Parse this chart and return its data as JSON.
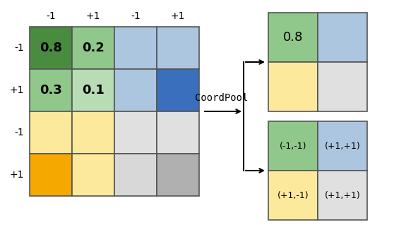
{
  "left_grid_colors": [
    [
      "#4a8c3f",
      "#90c78a",
      "#adc6e0",
      "#adc6e0"
    ],
    [
      "#90c78a",
      "#b8ddb5",
      "#adc6e0",
      "#3a6fbd"
    ],
    [
      "#fde99b",
      "#fde99b",
      "#e0e0e0",
      "#e0e0e0"
    ],
    [
      "#f5a800",
      "#fde99b",
      "#d8d8d8",
      "#b0b0b0"
    ]
  ],
  "left_grid_labels": [
    [
      "0.8",
      "0.2",
      "",
      ""
    ],
    [
      "0.3",
      "0.1",
      "",
      ""
    ],
    [
      "",
      "",
      "",
      ""
    ],
    [
      "",
      "",
      "",
      ""
    ]
  ],
  "left_col_headers": [
    "-1",
    "+1",
    "-1",
    "+1"
  ],
  "left_row_headers": [
    "-1",
    "+1",
    "-1",
    "+1"
  ],
  "right_top_colors": [
    [
      "#90c78a",
      "#adc6e0"
    ],
    [
      "#fde99b",
      "#e0e0e0"
    ]
  ],
  "right_top_labels": [
    [
      "0.8",
      ""
    ],
    [
      "",
      ""
    ]
  ],
  "right_bot_colors": [
    [
      "#90c78a",
      "#adc6e0"
    ],
    [
      "#fde99b",
      "#e0e0e0"
    ]
  ],
  "right_bot_labels": [
    [
      "(-1,-1)",
      "(+1,+1)"
    ],
    [
      "(+1,-1)",
      "(+1,+1)"
    ]
  ],
  "coordpool_label": "CoordPool",
  "bg_color": "#ffffff",
  "xlim": [
    0,
    558
  ],
  "ylim": [
    0,
    322
  ],
  "left_x0": 42,
  "left_y0": 38,
  "cell_size": 60,
  "right_x0": 380,
  "right_top_y0": 18,
  "right_bot_y0": 172,
  "cell_r": 70,
  "header_fontsize": 10,
  "label_fontsize": 13,
  "small_label_fontsize": 9,
  "coordpool_fontsize": 10
}
